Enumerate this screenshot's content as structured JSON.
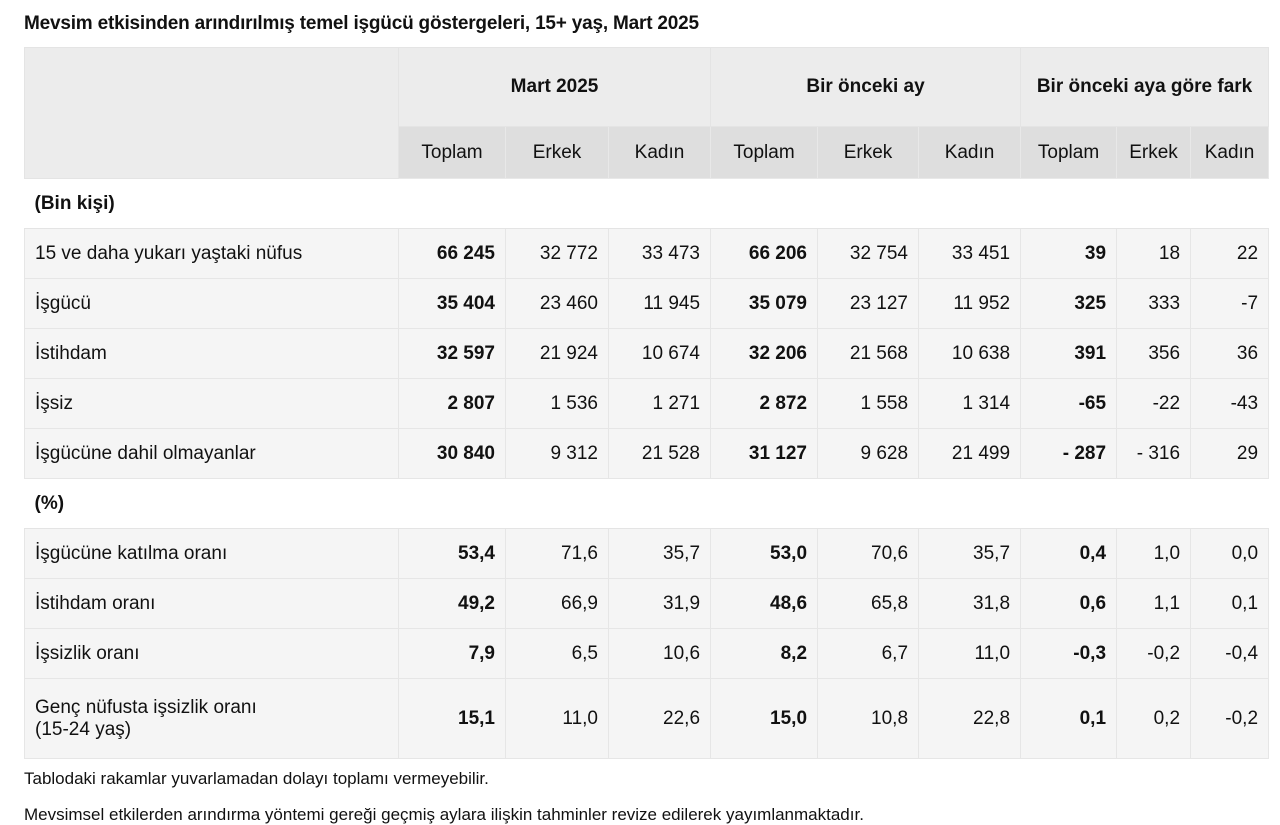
{
  "title": "Mevsim etkisinden arındırılmış temel işgücü göstergeleri, 15+ yaş, Mart 2025",
  "groups": [
    "Mart 2025",
    "Bir önceki ay",
    "Bir önceki aya göre fark"
  ],
  "subheaders": [
    "Toplam",
    "Erkek",
    "Kadın"
  ],
  "sections": [
    {
      "label": "(Bin kişi)",
      "rows": [
        {
          "label": "15 ve daha yukarı yaştaki nüfus",
          "values": [
            "66 245",
            "32 772",
            "33 473",
            "66 206",
            "32 754",
            "33 451",
            "39",
            "18",
            "22"
          ]
        },
        {
          "label": "İşgücü",
          "values": [
            "35 404",
            "23 460",
            "11 945",
            "35 079",
            "23 127",
            "11 952",
            "325",
            "333",
            "-7"
          ]
        },
        {
          "label": "İstihdam",
          "values": [
            "32 597",
            "21 924",
            "10 674",
            "32 206",
            "21 568",
            "10 638",
            "391",
            "356",
            "36"
          ]
        },
        {
          "label": "İşsiz",
          "values": [
            "2 807",
            "1 536",
            "1 271",
            "2 872",
            "1 558",
            "1 314",
            "-65",
            "-22",
            "-43"
          ]
        },
        {
          "label": "İşgücüne dahil olmayanlar",
          "values": [
            "30 840",
            "9 312",
            "21 528",
            "31 127",
            "9 628",
            "21 499",
            "- 287",
            "- 316",
            "29"
          ]
        }
      ]
    },
    {
      "label": "(%)",
      "rows": [
        {
          "label": "İşgücüne katılma oranı",
          "values": [
            "53,4",
            "71,6",
            "35,7",
            "53,0",
            "70,6",
            "35,7",
            "0,4",
            "1,0",
            "0,0"
          ]
        },
        {
          "label": "İstihdam oranı",
          "values": [
            "49,2",
            "66,9",
            "31,9",
            "48,6",
            "65,8",
            "31,8",
            "0,6",
            "1,1",
            "0,1"
          ]
        },
        {
          "label": "İşsizlik oranı",
          "values": [
            "7,9",
            "6,5",
            "10,6",
            "8,2",
            "6,7",
            "11,0",
            "-0,3",
            "-0,2",
            "-0,4"
          ]
        },
        {
          "label": "Genç nüfusta işsizlik oranı",
          "label2": "(15-24 yaş)",
          "values": [
            "15,1",
            "11,0",
            "22,6",
            "15,0",
            "10,8",
            "22,8",
            "0,1",
            "0,2",
            "-0,2"
          ]
        }
      ]
    }
  ],
  "notes": [
    "Tablodaki rakamlar yuvarlamadan dolayı toplamı vermeyebilir.",
    "Mevsimsel etkilerden arındırma yöntemi gereği geçmiş aylara ilişkin tahminler revize edilerek yayımlanmaktadır."
  ]
}
